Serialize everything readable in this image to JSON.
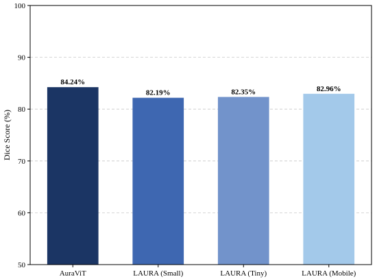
{
  "chart_data": {
    "type": "bar",
    "categories": [
      "AuraViT",
      "LAURA (Small)",
      "LAURA (Tiny)",
      "LAURA (Mobile)"
    ],
    "values": [
      84.24,
      82.19,
      82.35,
      82.96
    ],
    "data_labels": [
      "84.24%",
      "82.19%",
      "82.35%",
      "82.96%"
    ],
    "colors": [
      "#1b3564",
      "#3e67b1",
      "#7293cb",
      "#a3c9ea"
    ],
    "ylabel": "Dice Score (%)",
    "xlabel": "",
    "ylim": [
      50,
      100
    ],
    "yticks": [
      50,
      60,
      70,
      80,
      90,
      100
    ],
    "grid": true
  }
}
